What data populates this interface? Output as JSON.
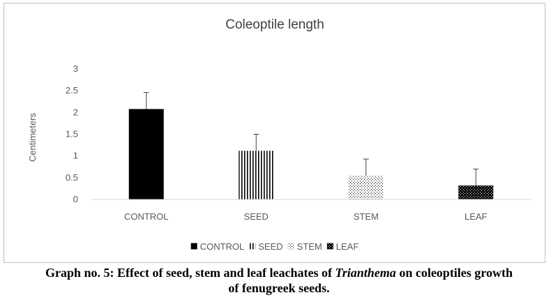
{
  "caption": {
    "line1_before": "Graph no. 5: Effect of seed, stem and leaf leachates of ",
    "line1_italic": "Trianthema",
    "line1_after": " on coleoptiles growth",
    "line2": "of fenugreek seeds."
  },
  "chart_data": {
    "type": "bar",
    "title": "Coleoptile length",
    "xlabel": "",
    "ylabel": "Centimeters",
    "ylim": [
      0,
      3
    ],
    "yticks": [
      "0",
      "0.5",
      "1",
      "1.5",
      "2",
      "2.5",
      "3"
    ],
    "categories": [
      "CONTROL",
      "SEED",
      "STEM",
      "LEAF"
    ],
    "values": [
      2.08,
      1.12,
      0.55,
      0.32
    ],
    "error_plus": [
      0.38,
      0.38,
      0.38,
      0.38
    ],
    "patterns": [
      "solid",
      "vertical-lines",
      "dots",
      "checker"
    ],
    "colors": {
      "bar": "#000000",
      "axis": "#d9d9d9",
      "error": "#404040"
    },
    "grid": false,
    "legend": {
      "position": "bottom",
      "entries": [
        "CONTROL",
        "SEED",
        "STEM",
        "LEAF"
      ]
    }
  }
}
